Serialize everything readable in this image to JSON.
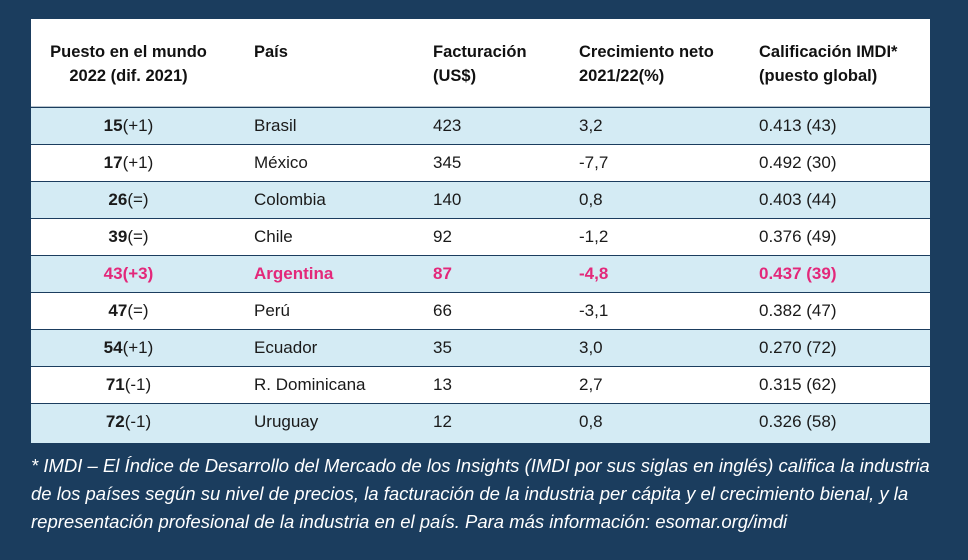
{
  "table": {
    "headers": [
      "Puesto en el mundo\n2022 (dif. 2021)",
      "País",
      "Facturación\n(US$)",
      "Crecimiento neto\n2021/22(%)",
      "Calificación IMDI*\n(puesto global)"
    ],
    "rows": [
      {
        "rank": "15",
        "diff": "(+1)",
        "country": "Brasil",
        "revenue": "423",
        "growth": "3,2",
        "imdi": "0.413 (43)"
      },
      {
        "rank": "17",
        "diff": "(+1)",
        "country": "México",
        "revenue": "345",
        "growth": "-7,7",
        "imdi": "0.492 (30)"
      },
      {
        "rank": "26",
        "diff": "(=)",
        "country": "Colombia",
        "revenue": "140",
        "growth": "0,8",
        "imdi": "0.403 (44)"
      },
      {
        "rank": "39",
        "diff": "(=)",
        "country": "Chile",
        "revenue": "92",
        "growth": "-1,2",
        "imdi": "0.376 (49)"
      },
      {
        "rank": "43",
        "diff": "(+3)",
        "country": "Argentina",
        "revenue": "87",
        "growth": "-4,8",
        "imdi": "0.437 (39)"
      },
      {
        "rank": "47",
        "diff": "(=)",
        "country": "Perú",
        "revenue": "66",
        "growth": "-3,1",
        "imdi": "0.382 (47)"
      },
      {
        "rank": "54",
        "diff": "(+1)",
        "country": "Ecuador",
        "revenue": "35",
        "growth": "3,0",
        "imdi": "0.270 (72)"
      },
      {
        "rank": "71",
        "diff": "(-1)",
        "country": "R. Dominicana",
        "revenue": "13",
        "growth": "2,7",
        "imdi": "0.315 (62)"
      },
      {
        "rank": "72",
        "diff": "(-1)",
        "country": "Uruguay",
        "revenue": "12",
        "growth": "0,8",
        "imdi": "0.326 (58)"
      }
    ]
  },
  "footnote": "* IMDI – El Índice de Desarrollo del Mercado de los Insights (IMDI por sus siglas en inglés) califica la industria de los países según su nivel de precios, la facturación de la industria per cápita y el crecimiento bienal, y la representación profesional de la industria en el país. Para más información: esomar.org/imdi",
  "colors": {
    "background": "#1b3d5e",
    "row_shaded": "#d4ebf4",
    "highlight": "#e3287a"
  }
}
